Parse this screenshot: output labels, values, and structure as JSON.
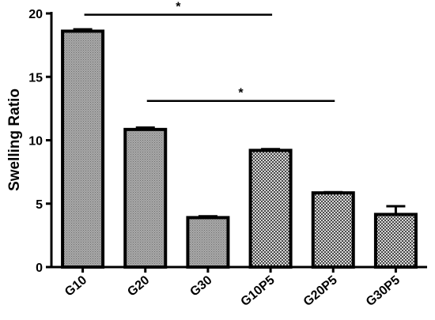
{
  "chart_data": {
    "type": "bar",
    "title": "",
    "xlabel": "",
    "ylabel": "Swelling Ratio",
    "ylim": [
      0,
      20
    ],
    "yticks": [
      0,
      5,
      10,
      15,
      20
    ],
    "categories": [
      "G10",
      "G20",
      "G30",
      "G10P5",
      "G20P5",
      "G30P5"
    ],
    "values": [
      18.6,
      10.85,
      3.9,
      9.2,
      5.85,
      4.15
    ],
    "errors": [
      0.15,
      0.15,
      0.1,
      0.1,
      0.05,
      0.65
    ],
    "patterns": [
      "dots",
      "dots",
      "dots",
      "checker",
      "checker",
      "checker"
    ],
    "significance": [
      {
        "from": "G10",
        "to": "G10P5",
        "label": "*",
        "y": 19.9
      },
      {
        "from": "G20",
        "to": "G20P5",
        "label": "*",
        "y": 13.1
      }
    ],
    "grid": false,
    "legend": "none"
  }
}
